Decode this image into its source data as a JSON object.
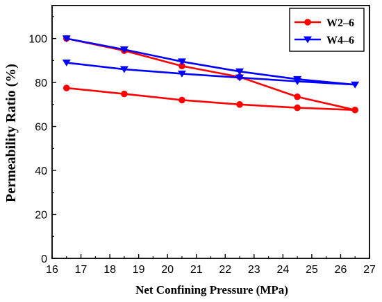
{
  "chart_data": {
    "type": "line",
    "title": "",
    "xlabel": "Net Confining Pressure (MPa)",
    "ylabel": "Permeability Ratio (%)",
    "xlim": [
      16,
      27
    ],
    "ylim": [
      0,
      115
    ],
    "x_ticks": [
      16,
      17,
      18,
      19,
      20,
      21,
      22,
      23,
      24,
      25,
      26,
      27
    ],
    "y_ticks": [
      0,
      20,
      40,
      60,
      80,
      100
    ],
    "grid": false,
    "legend_position": "top-right",
    "series": [
      {
        "name": "W2–6",
        "color": "#ff0000",
        "marker": "circle",
        "x": [
          16.5,
          18.5,
          20.5,
          22.5,
          24.5,
          26.5,
          24.5,
          22.5,
          20.5,
          18.5,
          16.5
        ],
        "y": [
          100,
          94.5,
          87.5,
          82.5,
          73.5,
          67.5,
          68.5,
          70,
          72,
          74.8,
          77.5
        ]
      },
      {
        "name": "W4–6",
        "color": "#0000ff",
        "marker": "triangle-down",
        "x": [
          16.5,
          18.5,
          20.5,
          22.5,
          24.5,
          26.5,
          24.5,
          22.5,
          20.5,
          18.5,
          16.5
        ],
        "y": [
          100,
          95,
          89.5,
          85,
          81.5,
          79,
          80.5,
          82.2,
          84,
          86,
          89
        ]
      }
    ]
  }
}
